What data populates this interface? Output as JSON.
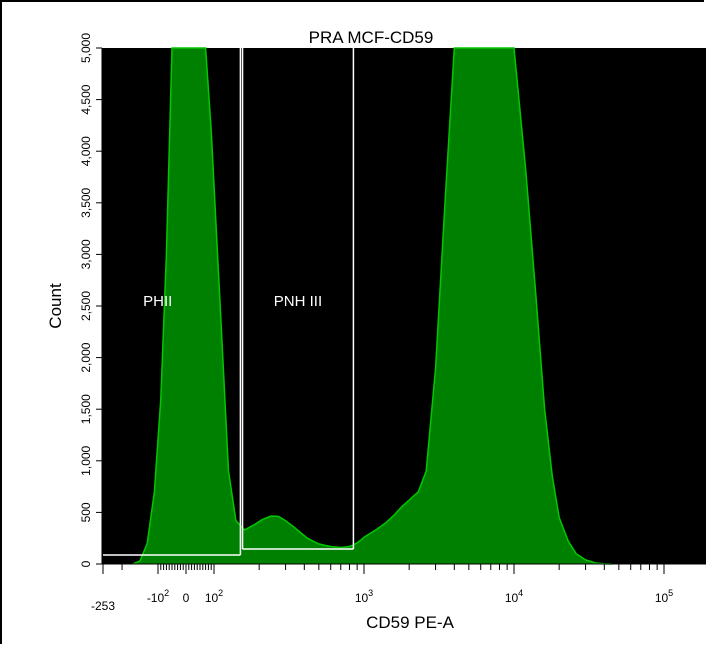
{
  "chart_data": {
    "type": "area",
    "title": "PRA MCF-CD59",
    "xlabel": "CD59 PE-A",
    "ylabel": "Count",
    "x_scale": "biexponential",
    "xlim": [
      -253,
      262144
    ],
    "ylim": [
      0,
      5000
    ],
    "grid": false,
    "colors": {
      "plot_bg": "#000000",
      "fill": "#008000",
      "outline": "#00c800",
      "gates": "#ffffff"
    },
    "y_ticks": [
      {
        "value": 0,
        "label": "0"
      },
      {
        "value": 500,
        "label": "500"
      },
      {
        "value": 1000,
        "label": "1,000"
      },
      {
        "value": 1500,
        "label": "1,500"
      },
      {
        "value": 2000,
        "label": "2,000"
      },
      {
        "value": 2500,
        "label": "2,500"
      },
      {
        "value": 3000,
        "label": "3,000"
      },
      {
        "value": 3500,
        "label": "3,500"
      },
      {
        "value": 4000,
        "label": "4,000"
      },
      {
        "value": 4500,
        "label": "4,500"
      },
      {
        "value": 5000,
        "label": "5,000"
      }
    ],
    "x_ticks": [
      {
        "value": -253,
        "base": "-253",
        "exp": ""
      },
      {
        "value": -100,
        "base": "-10",
        "exp": "2"
      },
      {
        "value": 0,
        "base": "0",
        "exp": ""
      },
      {
        "value": 100,
        "base": "10",
        "exp": "2"
      },
      {
        "value": 1000,
        "base": "10",
        "exp": "3"
      },
      {
        "value": 10000,
        "base": "10",
        "exp": "4"
      },
      {
        "value": 100000,
        "base": "10",
        "exp": "5"
      }
    ],
    "x_minor_ticks": [
      -200,
      -90,
      -80,
      -70,
      -60,
      -50,
      -40,
      -30,
      -20,
      -10,
      10,
      20,
      30,
      40,
      50,
      60,
      70,
      80,
      90,
      200,
      300,
      400,
      500,
      600,
      700,
      800,
      900,
      2000,
      3000,
      4000,
      5000,
      6000,
      7000,
      8000,
      9000,
      20000,
      30000,
      40000,
      50000,
      60000,
      70000,
      80000,
      90000,
      200000
    ],
    "series": [
      {
        "x": [
          -170,
          -150,
          -130,
          -110,
          -90,
          -70,
          -50,
          -25,
          0,
          25,
          50,
          70,
          90,
          110,
          125,
          140,
          160,
          185,
          210,
          240,
          270,
          300,
          340,
          380,
          420,
          460,
          500,
          550,
          600,
          650,
          700,
          750,
          800,
          850,
          900,
          950,
          1000,
          1200,
          1400,
          1600,
          1800,
          2000,
          2300,
          2600,
          3000,
          3500,
          4000,
          5000,
          6000,
          7000,
          8000,
          9000,
          10000,
          12000,
          14000,
          16000,
          18000,
          20000,
          23000,
          26000,
          30000,
          35000,
          40000,
          45000
        ],
        "y": [
          0,
          30,
          200,
          700,
          1600,
          3000,
          5000,
          5000,
          5000,
          5000,
          5000,
          5000,
          4200,
          2500,
          900,
          420,
          330,
          380,
          430,
          465,
          460,
          420,
          360,
          300,
          250,
          220,
          195,
          180,
          170,
          165,
          160,
          165,
          170,
          185,
          205,
          230,
          260,
          330,
          400,
          480,
          560,
          620,
          700,
          900,
          1900,
          3600,
          5000,
          5000,
          5000,
          5000,
          5000,
          5000,
          5000,
          3800,
          2600,
          1500,
          850,
          450,
          220,
          100,
          40,
          10,
          3,
          0
        ]
      }
    ],
    "gates": [
      {
        "name": "PHII",
        "range": [
          -253,
          150
        ]
      },
      {
        "name": "PNH III",
        "range": [
          155,
          850
        ]
      }
    ]
  }
}
